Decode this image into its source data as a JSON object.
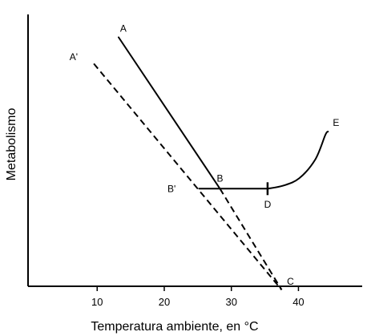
{
  "chart_data": {
    "type": "line",
    "xlabel": "Temperatura ambiente, en °C",
    "ylabel": "Metabolismo",
    "xlim": [
      -0.3,
      49.5
    ],
    "ylim": [
      0,
      100
    ],
    "x_ticks": [
      10,
      20,
      30,
      40
    ],
    "x_tick_labels": [
      "10",
      "20",
      "30",
      "40"
    ],
    "series": [
      {
        "style": "solid",
        "points": [
          [
            13.2,
            91.6
          ],
          [
            28.3,
            35.9
          ]
        ]
      },
      {
        "style": "dashed",
        "points": [
          [
            28.3,
            35.9
          ],
          [
            37.5,
            -1.3
          ]
        ]
      },
      {
        "style": "dashed",
        "points": [
          [
            9.5,
            81.9
          ],
          [
            37.5,
            -1.3
          ]
        ]
      },
      {
        "style": "solid",
        "points": [
          [
            25.2,
            35.9
          ],
          [
            35.4,
            35.9
          ]
        ]
      },
      {
        "style": "solid",
        "curve": true,
        "points": [
          [
            35.4,
            35.9
          ],
          [
            37.7,
            37.0
          ],
          [
            40.1,
            39.7
          ],
          [
            42.5,
            46.6
          ],
          [
            44.0,
            55.6
          ],
          [
            44.4,
            56.9
          ]
        ]
      }
    ],
    "tick_marks": [
      {
        "x": 35.4,
        "y": 35.9
      }
    ],
    "annotations": [
      {
        "text": "A",
        "x": 13.9,
        "y": 94.6
      },
      {
        "text": "A'",
        "x": 6.5,
        "y": 84.1
      },
      {
        "text": "B",
        "x": 28.3,
        "y": 39.5
      },
      {
        "text": "B'",
        "x": 21.1,
        "y": 35.6
      },
      {
        "text": "C",
        "x": 38.8,
        "y": 1.5
      },
      {
        "text": "D",
        "x": 35.4,
        "y": 29.9
      },
      {
        "text": "E",
        "x": 45.6,
        "y": 59.9
      }
    ]
  }
}
